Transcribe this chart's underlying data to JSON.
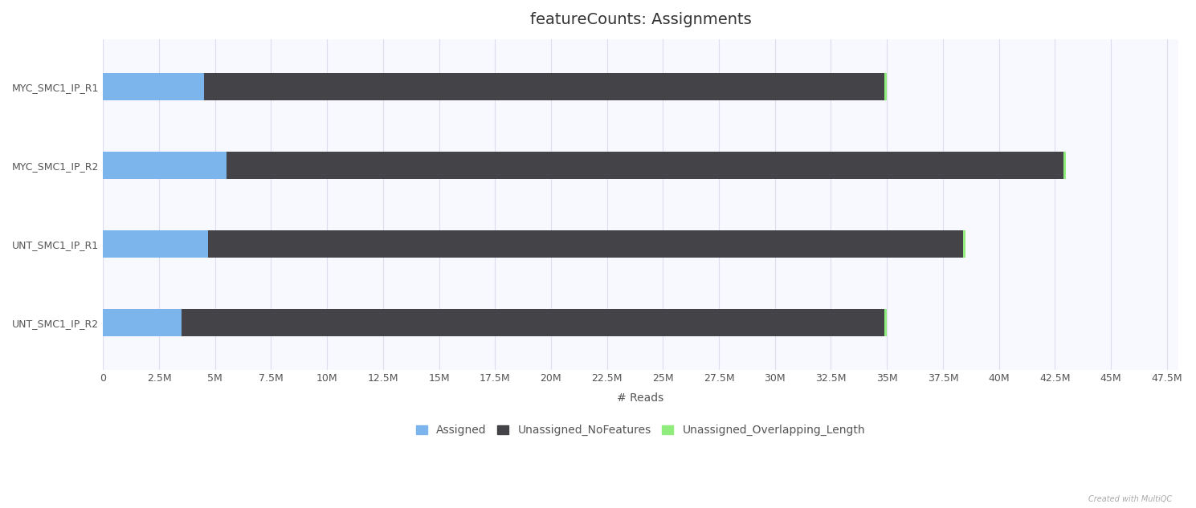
{
  "title": "featureCounts: Assignments",
  "categories": [
    "MYC_SMC1_IP_R1",
    "MYC_SMC1_IP_R2",
    "UNT_SMC1_IP_R1",
    "UNT_SMC1_IP_R2"
  ],
  "series": [
    {
      "name": "Assigned",
      "color": "#7cb5ec",
      "values": [
        4500000,
        5500000,
        4700000,
        3500000
      ]
    },
    {
      "name": "Unassigned_NoFeatures",
      "color": "#434348",
      "values": [
        30400000,
        37400000,
        33700000,
        31400000
      ]
    },
    {
      "name": "Unassigned_Overlapping_Length",
      "color": "#90ed7d",
      "values": [
        100000,
        100000,
        100000,
        100000
      ]
    }
  ],
  "xlabel": "# Reads",
  "ylabel": "",
  "xlim": [
    0,
    48000000
  ],
  "background_color": "#ffffff",
  "plot_bg_color": "#f8f8ff",
  "grid_color": "#ddddee",
  "title_fontsize": 14,
  "label_fontsize": 10,
  "tick_fontsize": 9,
  "bar_height": 0.35,
  "legend_fontsize": 10,
  "watermark": "Created with MultiQC"
}
